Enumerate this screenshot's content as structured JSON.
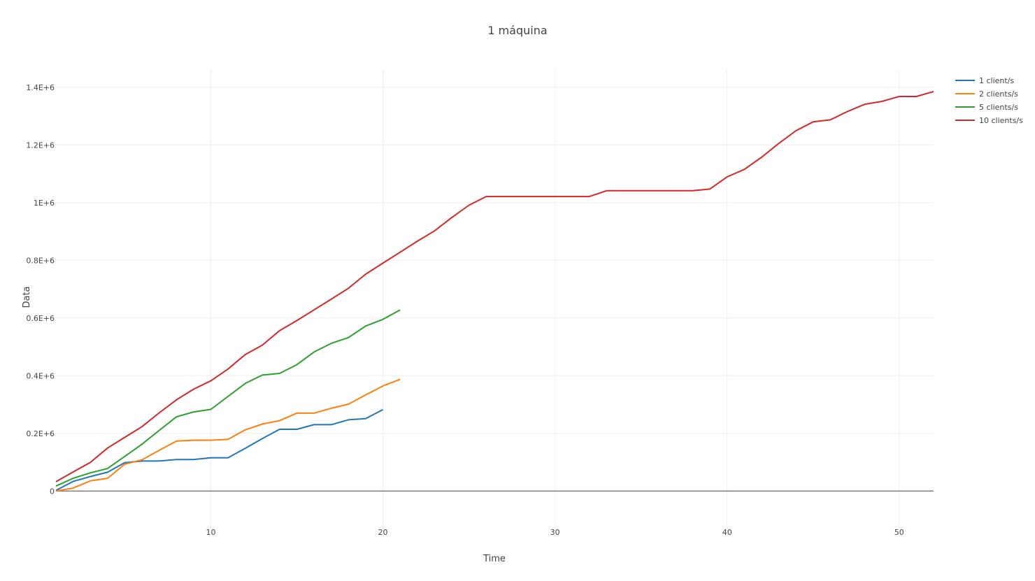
{
  "chart_data": {
    "type": "line",
    "title": "1 máquina",
    "xlabel": "Time",
    "ylabel": "Data",
    "xlim": [
      1,
      52
    ],
    "ylim": [
      -140000,
      1460000
    ],
    "x_ticks": [
      10,
      20,
      30,
      40,
      50
    ],
    "x_tick_labels": [
      "10",
      "20",
      "30",
      "40",
      "50"
    ],
    "y_ticks": [
      0,
      200000,
      400000,
      600000,
      800000,
      1000000,
      1200000,
      1400000
    ],
    "y_tick_labels": [
      "0",
      "0.2E+6",
      "0.4E+6",
      "0.6E+6",
      "0.8E+6",
      "1E+6",
      "1.2E+6",
      "1.4E+6"
    ],
    "grid": true,
    "legend_position": "top-right",
    "series": [
      {
        "name": "1 client/s",
        "color": "#1f77b4",
        "x": [
          1,
          2,
          3,
          4,
          5,
          6,
          7,
          8,
          9,
          10,
          11,
          12,
          13,
          14,
          15,
          16,
          17,
          18,
          19,
          20
        ],
        "values": [
          2000,
          33000,
          50000,
          65000,
          98000,
          104000,
          104000,
          109000,
          109000,
          115000,
          115000,
          148000,
          182000,
          214000,
          214000,
          230000,
          230000,
          247000,
          251000,
          282000
        ]
      },
      {
        "name": "2 clients/s",
        "color": "#ff7f0e",
        "x": [
          1,
          2,
          3,
          4,
          5,
          6,
          7,
          8,
          9,
          10,
          11,
          12,
          13,
          14,
          15,
          16,
          17,
          18,
          19,
          20,
          21
        ],
        "values": [
          0,
          10000,
          35000,
          44000,
          93000,
          108000,
          141000,
          173000,
          176000,
          176000,
          179000,
          212000,
          232000,
          244000,
          270000,
          270000,
          287000,
          301000,
          333000,
          364000,
          387000
        ]
      },
      {
        "name": "5 clients/s",
        "color": "#2ca02c",
        "x": [
          1,
          2,
          3,
          4,
          5,
          6,
          7,
          8,
          9,
          10,
          11,
          12,
          13,
          14,
          15,
          16,
          17,
          18,
          19,
          20,
          21
        ],
        "values": [
          17000,
          44000,
          63000,
          78000,
          120000,
          162000,
          210000,
          257000,
          274000,
          283000,
          328000,
          373000,
          402000,
          408000,
          438000,
          482000,
          512000,
          532000,
          572000,
          595000,
          628000
        ]
      },
      {
        "name": "10 clients/s",
        "color": "#d62728",
        "x": [
          1,
          2,
          3,
          4,
          5,
          6,
          7,
          8,
          9,
          10,
          11,
          12,
          13,
          14,
          15,
          16,
          17,
          18,
          19,
          20,
          21,
          22,
          23,
          24,
          25,
          26,
          27,
          28,
          29,
          30,
          31,
          32,
          33,
          34,
          35,
          36,
          37,
          38,
          39,
          40,
          41,
          42,
          43,
          44,
          45,
          46,
          47,
          48,
          49,
          50,
          51,
          52
        ],
        "values": [
          32000,
          66000,
          99000,
          149000,
          186000,
          223000,
          271000,
          316000,
          353000,
          382000,
          423000,
          473000,
          506000,
          556000,
          591000,
          628000,
          665000,
          703000,
          752000,
          790000,
          828000,
          866000,
          902000,
          948000,
          991000,
          1021000,
          1021000,
          1021000,
          1021000,
          1021000,
          1021000,
          1021000,
          1041000,
          1041000,
          1041000,
          1041000,
          1041000,
          1041000,
          1047000,
          1089000,
          1115000,
          1157000,
          1205000,
          1249000,
          1280000,
          1287000,
          1316000,
          1341000,
          1351000,
          1368000,
          1368000,
          1385000
        ]
      }
    ]
  }
}
